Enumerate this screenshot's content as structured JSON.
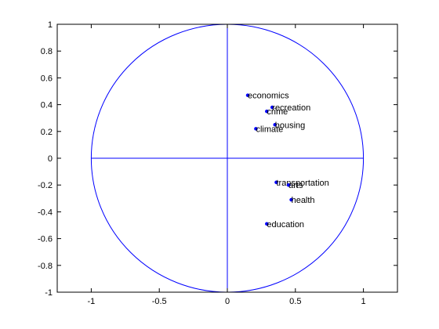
{
  "chart_data": {
    "type": "scatter",
    "title": "",
    "xlabel": "",
    "ylabel": "",
    "xlim": [
      -1.25,
      1.25
    ],
    "ylim": [
      -1,
      1
    ],
    "xticks": [
      -1,
      -0.5,
      0,
      0.5,
      1
    ],
    "xtick_labels": [
      "-1",
      "-0.5",
      "0",
      "0.5",
      "1"
    ],
    "yticks": [
      -1,
      -0.8,
      -0.6,
      -0.4,
      -0.2,
      0,
      0.2,
      0.4,
      0.6,
      0.8,
      1
    ],
    "ytick_labels": [
      "-1",
      "-0.8",
      "-0.6",
      "-0.4",
      "-0.2",
      "0",
      "0.2",
      "0.4",
      "0.6",
      "0.8",
      "1"
    ],
    "grid": false,
    "legend": "none",
    "unit_circle": true,
    "axis_lines": true,
    "points": [
      {
        "label": "economics",
        "x": 0.15,
        "y": 0.47
      },
      {
        "label": "recreation",
        "x": 0.33,
        "y": 0.38
      },
      {
        "label": "crime",
        "x": 0.29,
        "y": 0.35
      },
      {
        "label": "housing",
        "x": 0.35,
        "y": 0.25
      },
      {
        "label": "climate",
        "x": 0.21,
        "y": 0.22
      },
      {
        "label": "transportation",
        "x": 0.36,
        "y": -0.18
      },
      {
        "label": "arts",
        "x": 0.45,
        "y": -0.2
      },
      {
        "label": "health",
        "x": 0.47,
        "y": -0.31
      },
      {
        "label": "education",
        "x": 0.29,
        "y": -0.49
      }
    ],
    "colors": {
      "series": "#0000ff",
      "axes": "#000000",
      "background": "#ffffff"
    }
  }
}
